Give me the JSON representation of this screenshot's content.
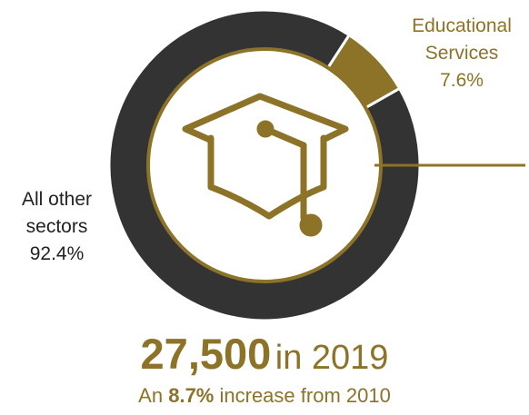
{
  "colors": {
    "accent": "#8c7328",
    "dark": "#333333",
    "background": "#ffffff"
  },
  "chart_data": {
    "type": "pie",
    "variant": "donut",
    "categories": [
      "Educational Services",
      "All other sectors"
    ],
    "values": [
      7.6,
      92.4
    ],
    "unit": "%",
    "colors": [
      "#8c7328",
      "#333333"
    ],
    "center_icon": "graduation-cap-icon"
  },
  "labels": {
    "educational": {
      "line1": "Educational",
      "line2": "Services",
      "value": "7.6%"
    },
    "other": {
      "line1": "All other",
      "line2": "sectors",
      "value": "92.4%"
    }
  },
  "headline": {
    "number": "27,500",
    "suffix": "in 2019"
  },
  "subline": {
    "prefix": "An",
    "percent": "8.7%",
    "suffix": "increase from 2010"
  }
}
